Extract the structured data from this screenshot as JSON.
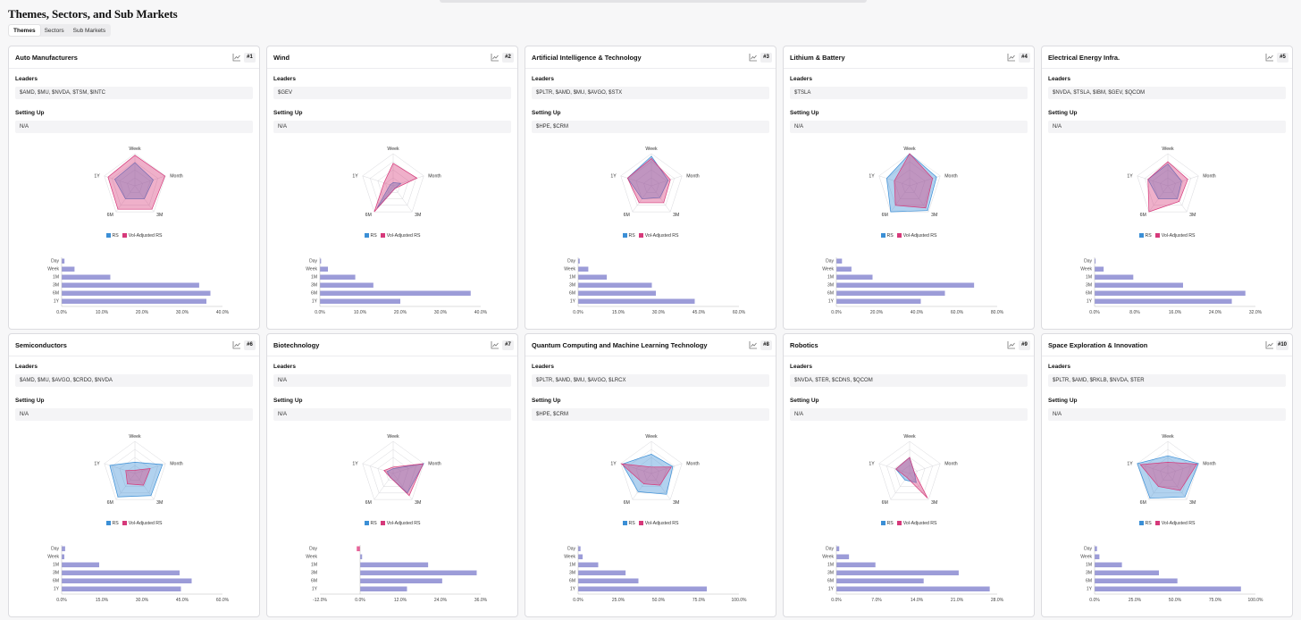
{
  "page": {
    "title": "Themes, Sectors, and Sub Markets"
  },
  "tabs": [
    {
      "label": "Themes",
      "active": true
    },
    {
      "label": "Sectors",
      "active": false
    },
    {
      "label": "Sub Markets",
      "active": false
    }
  ],
  "labels": {
    "leaders": "Leaders",
    "setting_up": "Setting Up"
  },
  "legend": {
    "rs": "RS",
    "vol": "Vol-Adjusted RS"
  },
  "colors": {
    "rs": "#3b8fd6",
    "vol": "#d6397a",
    "bar": "#9c9cd8",
    "bar_negative": "#e8649a"
  },
  "radar_axes": [
    "Week",
    "Month",
    "3M",
    "6M",
    "1Y"
  ],
  "bar_categories": [
    "Day",
    "Week",
    "1M",
    "3M",
    "6M",
    "1Y"
  ],
  "chart_data": [
    {
      "type": "bar",
      "title": "Auto Manufacturers",
      "categories": [
        "Day",
        "Week",
        "1M",
        "3M",
        "6M",
        "1Y"
      ],
      "values": [
        0.7,
        3.2,
        12.1,
        34.2,
        37.0,
        36.0
      ],
      "xlim": [
        0,
        40
      ],
      "ticks": [
        "0.0%",
        "10.0%",
        "20.0%",
        "30.0%",
        "40.0%"
      ]
    },
    {
      "type": "bar",
      "title": "Wind",
      "categories": [
        "Day",
        "Week",
        "1M",
        "3M",
        "6M",
        "1Y"
      ],
      "values": [
        0.3,
        2.0,
        8.8,
        13.3,
        37.5,
        20.0
      ],
      "xlim": [
        0,
        40
      ],
      "ticks": [
        "0.0%",
        "10.0%",
        "20.0%",
        "30.0%",
        "40.0%"
      ]
    },
    {
      "type": "bar",
      "title": "Artificial Intelligence & Technology",
      "categories": [
        "Day",
        "Week",
        "1M",
        "3M",
        "6M",
        "1Y"
      ],
      "values": [
        0.6,
        3.8,
        10.7,
        27.5,
        29.0,
        43.5
      ],
      "xlim": [
        0,
        60
      ],
      "ticks": [
        "0.0%",
        "15.0%",
        "30.0%",
        "45.0%",
        "60.0%"
      ]
    },
    {
      "type": "bar",
      "title": "Lithium & Battery",
      "categories": [
        "Day",
        "Week",
        "1M",
        "3M",
        "6M",
        "1Y"
      ],
      "values": [
        2.8,
        7.5,
        18.0,
        68.5,
        54.0,
        42.0
      ],
      "xlim": [
        0,
        80
      ],
      "ticks": [
        "0.0%",
        "20.0%",
        "40.0%",
        "60.0%",
        "80.0%"
      ]
    },
    {
      "type": "bar",
      "title": "Electrical Energy Infra.",
      "categories": [
        "Day",
        "Week",
        "1M",
        "3M",
        "6M",
        "1Y"
      ],
      "values": [
        0.2,
        1.8,
        7.7,
        17.6,
        30.0,
        27.3
      ],
      "xlim": [
        0,
        32
      ],
      "ticks": [
        "0.0%",
        "8.0%",
        "16.0%",
        "24.0%",
        "32.0%"
      ]
    },
    {
      "type": "bar",
      "title": "Semiconductors",
      "categories": [
        "Day",
        "Week",
        "1M",
        "3M",
        "6M",
        "1Y"
      ],
      "values": [
        1.3,
        1.0,
        14.0,
        44.0,
        48.5,
        44.5
      ],
      "xlim": [
        0,
        60
      ],
      "ticks": [
        "0.0%",
        "15.0%",
        "30.0%",
        "45.0%",
        "60.0%"
      ]
    },
    {
      "type": "bar",
      "title": "Biotechnology",
      "categories": [
        "Day",
        "Week",
        "1M",
        "3M",
        "6M",
        "1Y"
      ],
      "values": [
        -1.0,
        0.6,
        20.3,
        34.8,
        24.5,
        14.0
      ],
      "xlim": [
        -12,
        36
      ],
      "ticks": [
        "-12.0%",
        "0.0%",
        "12.0%",
        "24.0%",
        "36.0%"
      ]
    },
    {
      "type": "bar",
      "title": "Quantum Computing and Machine Learning Technology",
      "categories": [
        "Day",
        "Week",
        "1M",
        "3M",
        "6M",
        "1Y"
      ],
      "values": [
        1.5,
        2.8,
        12.5,
        29.5,
        37.5,
        80.0
      ],
      "xlim": [
        0,
        100
      ],
      "ticks": [
        "0.0%",
        "25.0%",
        "50.0%",
        "75.0%",
        "100.0%"
      ]
    },
    {
      "type": "bar",
      "title": "Robotics",
      "categories": [
        "Day",
        "Week",
        "1M",
        "3M",
        "6M",
        "1Y"
      ],
      "values": [
        0.5,
        2.2,
        6.8,
        21.3,
        15.2,
        26.7
      ],
      "xlim": [
        0,
        28
      ],
      "ticks": [
        "0.0%",
        "7.0%",
        "14.0%",
        "21.0%",
        "28.0%"
      ]
    },
    {
      "type": "bar",
      "title": "Space Exploration & Innovation",
      "categories": [
        "Day",
        "Week",
        "1M",
        "3M",
        "6M",
        "1Y"
      ],
      "values": [
        1.5,
        3.0,
        17.0,
        40.0,
        51.5,
        91.0
      ],
      "xlim": [
        0,
        100
      ],
      "ticks": [
        "0.0%",
        "25.0%",
        "50.0%",
        "75.0%",
        "100.0%"
      ]
    }
  ],
  "cards": [
    {
      "title": "Auto Manufacturers",
      "rank": "#1",
      "leaders": "$AMD, $MU, $NVDA, $TSM, $INTC",
      "setting_up": "N/A",
      "radar": {
        "rs": [
          0.72,
          0.6,
          0.5,
          0.5,
          0.66
        ],
        "vol": [
          0.95,
          0.98,
          0.9,
          0.9,
          0.88
        ]
      }
    },
    {
      "title": "Wind",
      "rank": "#2",
      "leaders": "$GEV",
      "setting_up": "N/A",
      "radar": {
        "rs": [
          0.1,
          0.25,
          0.1,
          0.85,
          0.1
        ],
        "vol": [
          0.7,
          0.78,
          0.1,
          1.0,
          0.3
        ]
      }
    },
    {
      "title": "Artificial Intelligence & Technology",
      "rank": "#3",
      "leaders": "$PLTR, $AMD, $MU, $AVGO, $STX",
      "setting_up": "$HPE, $CRM",
      "radar": {
        "rs": [
          0.92,
          0.55,
          0.45,
          0.5,
          0.78
        ],
        "vol": [
          0.85,
          0.62,
          0.65,
          0.65,
          0.78
        ]
      }
    },
    {
      "title": "Lithium & Battery",
      "rank": "#4",
      "leaders": "$TSLA",
      "setting_up": "N/A",
      "radar": {
        "rs": [
          1.0,
          0.88,
          0.95,
          1.0,
          0.75
        ],
        "vol": [
          1.0,
          0.75,
          0.85,
          0.75,
          0.5
        ]
      }
    },
    {
      "title": "Electrical Energy Infra.",
      "rank": "#5",
      "leaders": "$NVDA, $TSLA, $IBM, $GEV, $QCOM",
      "setting_up": "N/A",
      "radar": {
        "rs": [
          0.68,
          0.45,
          0.5,
          0.5,
          0.65
        ],
        "vol": [
          0.75,
          0.65,
          0.6,
          1.0,
          0.65
        ]
      }
    },
    {
      "title": "Semiconductors",
      "rank": "#6",
      "leaders": "$AMD, $MU, $AVGO, $CRDO, $NVDA",
      "setting_up": "N/A",
      "radar": {
        "rs": [
          0.35,
          0.9,
          0.85,
          0.9,
          0.82
        ],
        "vol": [
          0.1,
          0.5,
          0.45,
          0.4,
          0.3
        ]
      }
    },
    {
      "title": "Biotechnology",
      "rank": "#7",
      "leaders": "N/A",
      "setting_up": "N/A",
      "radar": {
        "rs": [
          0.15,
          1.0,
          0.75,
          0.15,
          0.2
        ],
        "vol": [
          0.2,
          0.98,
          0.85,
          0.15,
          0.3
        ]
      }
    },
    {
      "title": "Quantum Computing and Machine Learning Technology",
      "rank": "#8",
      "leaders": "$PLTR, $AMD, $MU, $AVGO, $LRCX",
      "setting_up": "$HPE, $CRM",
      "radar": {
        "rs": [
          0.6,
          0.7,
          0.8,
          0.7,
          0.95
        ],
        "vol": [
          0.2,
          0.65,
          0.45,
          0.4,
          0.98
        ]
      }
    },
    {
      "title": "Robotics",
      "rank": "#9",
      "leaders": "$NVDA, $TER, $CDNS, $QCOM",
      "setting_up": "N/A",
      "radar": {
        "rs": [
          0.5,
          0.15,
          0.35,
          0.25,
          0.45
        ],
        "vol": [
          0.5,
          0.15,
          0.95,
          0.15,
          0.45
        ]
      }
    },
    {
      "title": "Space Exploration & Innovation",
      "rank": "#10",
      "leaders": "$PLTR, $AMD, $RKLB, $NVDA, $TER",
      "setting_up": "N/A",
      "radar": {
        "rs": [
          0.55,
          1.0,
          0.9,
          0.95,
          1.0
        ],
        "vol": [
          0.35,
          0.95,
          0.65,
          0.5,
          0.9
        ]
      }
    }
  ]
}
